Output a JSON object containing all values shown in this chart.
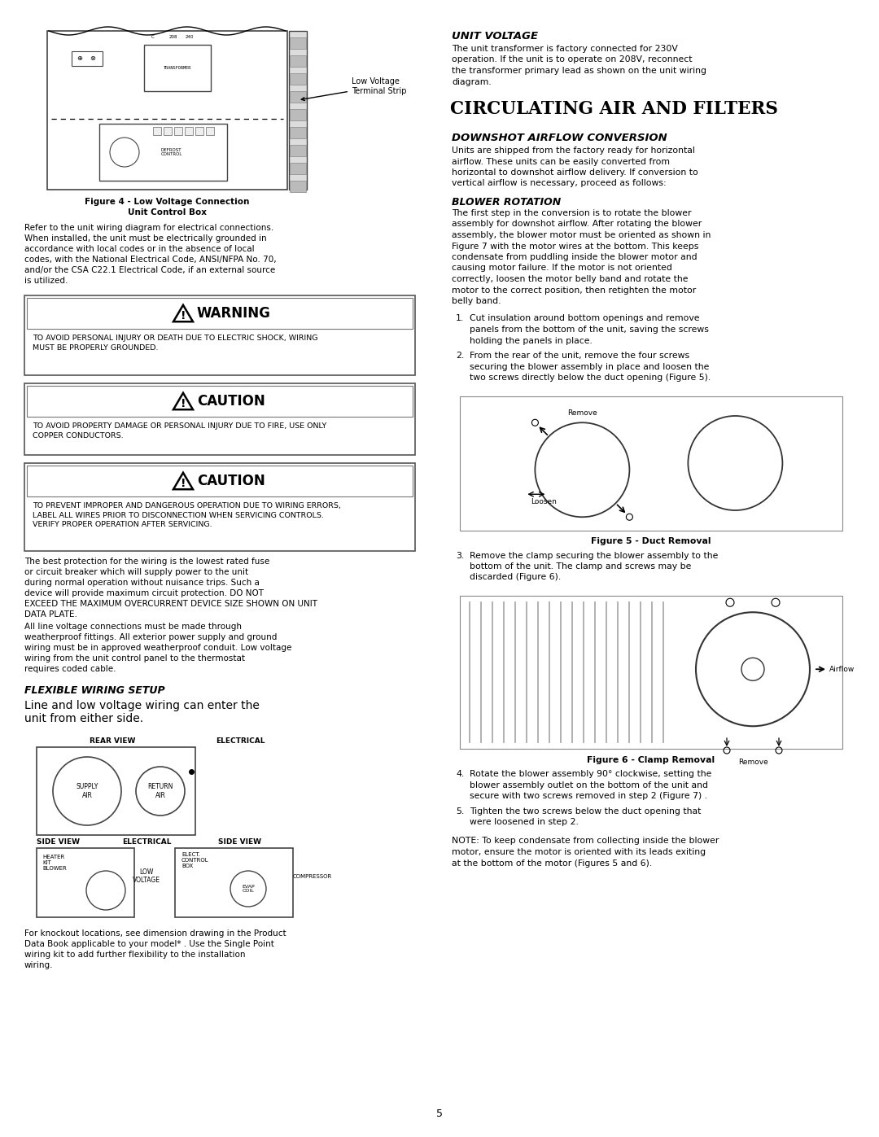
{
  "page_width": 10.8,
  "page_height": 13.97,
  "bg_color": "#ffffff",
  "text_color": "#000000",
  "sections": {
    "unit_voltage_heading": "UNIT VOLTAGE",
    "unit_voltage_text": "The unit transformer is factory connected for 230V operation. If the unit is to operate on 208V, reconnect the transformer primary lead as shown on the unit wiring diagram.",
    "circ_air_heading": "CIRCULATING AIR AND FILTERS",
    "downshot_heading": "DOWNSHOT AIRFLOW CONVERSION",
    "downshot_text": "Units are shipped from the factory ready for horizontal airflow.  These units can be easily converted from horizontal to downshot airflow delivery.  If conversion to vertical airflow is necessary, proceed as follows:",
    "blower_rot_heading": "BLOWER ROTATION",
    "blower_rot_text": "The first step in the conversion is to rotate the blower assembly for downshot airflow. After rotating the blower assembly, the blower motor must be oriented as shown in Figure 7 with the motor wires at the bottom. This keeps condensate from puddling inside the blower motor and causing motor failure. If the motor is not oriented correctly, loosen the motor belly band and rotate the motor to the correct position, then retighten the motor belly band.",
    "steps": [
      "Cut insulation around bottom openings and remove panels from the bottom of the unit, saving the screws holding the panels in place.",
      "From the rear of the unit, remove the four screws securing the blower assembly in place and loosen the two screws directly below the duct opening (Figure 5).",
      "Remove the clamp securing the blower assembly to the bottom of the unit. The clamp and screws may be discarded (Figure 6).",
      "Rotate the blower assembly 90° clockwise, setting the blower assembly outlet on the bottom of the unit and secure with two screws removed in step 2 (Figure 7) .",
      "Tighten the two screws below the duct opening that were loosened in step 2."
    ],
    "note_text": "NOTE: To keep condensate from collecting inside the blower motor, ensure the motor is oriented with its leads exiting at the bottom of the motor (Figures 5 and 6).",
    "fig4_caption_line1": "Figure 4 - Low Voltage Connection",
    "fig4_caption_line2": "Unit Control Box",
    "fig5_caption": "Figure 5 - Duct Removal",
    "fig6_caption": "Figure 6 - Clamp Removal",
    "left_body1": "Refer to the unit wiring diagram for electrical connections. When installed, the unit must be electrically grounded in accordance with local codes or in the absence of local codes, with the National Electrical Code, ANSI/NFPA No. 70, and/or the CSA C22.1 Electrical Code, if an external source is utilized.",
    "warning_text": "TO AVOID PERSONAL INJURY OR DEATH DUE TO ELECTRIC SHOCK, WIRING MUST BE PROPERLY GROUNDED.",
    "caution1_text": "TO AVOID PROPERTY DAMAGE OR PERSONAL INJURY DUE TO FIRE, USE ONLY COPPER CONDUCTORS.",
    "caution2_text": "TO PREVENT IMPROPER AND DANGEROUS OPERATION DUE TO WIRING ERRORS, LABEL ALL WIRES PRIOR TO DISCONNECTION WHEN SERVICING CONTROLS.  VERIFY PROPER OPERATION AFTER SERVICING.",
    "body2_part1": "The best protection for the wiring is the lowest rated fuse or circuit breaker which will supply power to the unit during normal operation without nuisance trips. Such a device will provide maximum circuit protection. DO NOT EXCEED THE MAXIMUM OVERCURRENT DEVICE SIZE SHOWN ON UNIT DATA PLATE.",
    "body2_part2": "All line voltage connections must be made through weatherproof fittings.  All exterior power supply and ground wiring must be in approved weatherproof conduit. Low voltage wiring from the unit control panel to the thermostat requires coded cable.",
    "flexible_heading": "FLEXIBLE WIRING SETUP",
    "flexible_text": "Line and low voltage wiring can enter the unit from either side.",
    "knockout_text": "For knockout locations, see dimension drawing in the Product Data Book applicable to your model* .  Use the Single Point wiring kit to add further flexibility to the installation wiring.",
    "page_number": "5"
  }
}
